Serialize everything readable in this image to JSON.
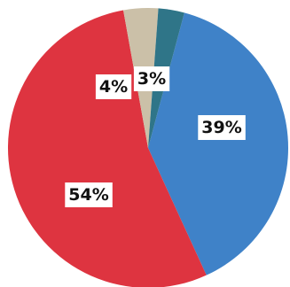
{
  "chart_data": {
    "type": "pie",
    "title": "",
    "start_angle_deg": 15,
    "direction": "clockwise",
    "slices": [
      {
        "label": "39%",
        "value": 39,
        "color": "#3f82c8"
      },
      {
        "label": "54%",
        "value": 54,
        "color": "#de3440"
      },
      {
        "label": "4%",
        "value": 4,
        "color": "#cbc0a8"
      },
      {
        "label": "3%",
        "value": 3,
        "color": "#2f7588"
      }
    ]
  }
}
